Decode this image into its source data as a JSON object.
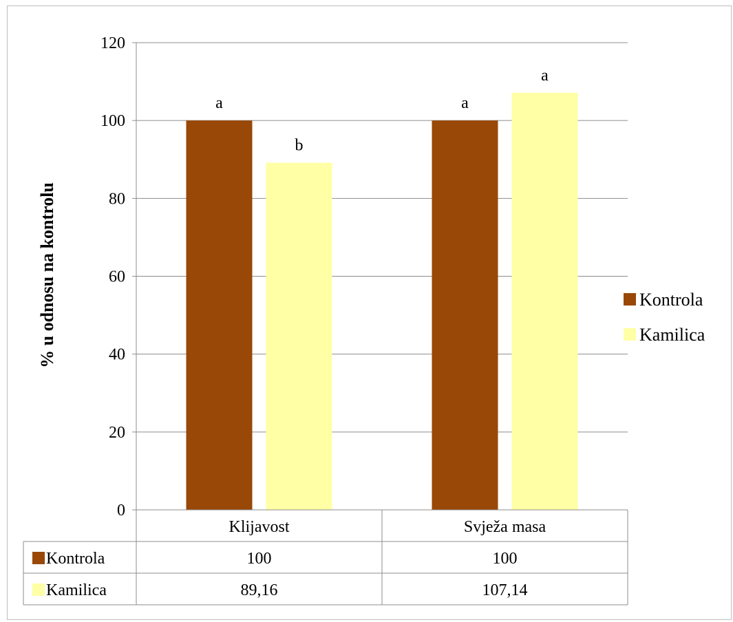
{
  "chart_data": {
    "type": "bar",
    "ylabel": "% u odnosu na kontrolu",
    "ylim": [
      0,
      120
    ],
    "yticks": [
      "0",
      "20",
      "40",
      "60",
      "80",
      "100",
      "120"
    ],
    "categories": [
      "Klijavost",
      "Svježa masa"
    ],
    "grid": true,
    "legend_position": "right",
    "series": [
      {
        "name": "Kontrola",
        "color": "#994807",
        "values": [
          100,
          100
        ],
        "display": [
          "100",
          "100"
        ],
        "annotations": [
          "a",
          "a"
        ]
      },
      {
        "name": "Kamilica",
        "color": "#FFFFA5",
        "values": [
          89.16,
          107.14
        ],
        "display": [
          "89,16",
          "107,14"
        ],
        "annotations": [
          "b",
          "a"
        ]
      }
    ]
  }
}
